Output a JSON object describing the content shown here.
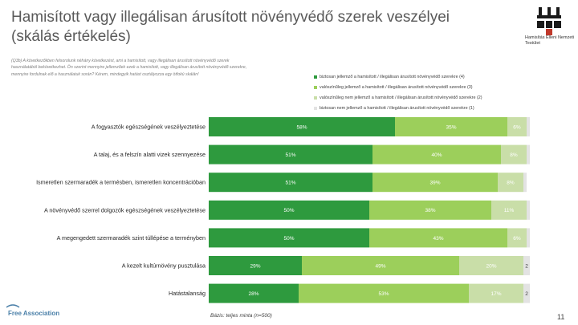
{
  "title": "Hamisított vagy illegálisan árusított növényvédő szerek veszélyei (skálás értékelés)",
  "logo_text": "Hamisítás Elleni Nemzeti Testület",
  "question": "(Q3b) A következőkben felsorolunk néhány következést, ami a hamisított, vagy illegálisan árusított növényvédő szerek használatából bekövetkezhet. Ön szerint mennyire jellemzőek ezek a hamisított, vagy illegálisan árusított növényvédő szerekre, mennyire fordulnak elő a használatuk során? Kérem, mindegyik hatást osztályozza egy ötfokú skálán!",
  "base_note": "Bázis: teljes minta (n=500)",
  "page_number": "11",
  "brand": "Free Association",
  "colors": {
    "s1": "#2e9a3e",
    "s2": "#9ccf5b",
    "s3": "#c9dea8",
    "s4": "#e3e3e3",
    "text_light": "#ffffff",
    "text_dark": "#ffffff"
  },
  "chart_data": {
    "type": "bar",
    "orientation": "horizontal-stacked",
    "categories": [
      "A fogyasztók egészségének veszélyeztetése",
      "A talaj, és a felszín alatti vizek szennyezése",
      "Ismeretlen szermaradék a termésben, ismeretlen koncentrációban",
      "A növényvédő szerrel dolgozók egészségének veszélyeztetése",
      "A megengedett szermaradék szint túllépése a terményben",
      "A kezelt kultúrnövény pusztulása",
      "Hatástalanság"
    ],
    "series": [
      {
        "name": "biztosan jellemző a hamisított / illegálisan árusított növényvédő szerekre (4)",
        "values": [
          58,
          51,
          51,
          50,
          50,
          29,
          28
        ],
        "labels": [
          "58%",
          "51%",
          "51%",
          "50%",
          "50%",
          "29%",
          "28%"
        ]
      },
      {
        "name": "valószínűleg jellemző a hamisított / illegálisan árusított növényvédő szerekre (3)",
        "values": [
          35,
          40,
          39,
          38,
          43,
          49,
          53
        ],
        "labels": [
          "35%",
          "40%",
          "39%",
          "38%",
          "43%",
          "49%",
          "53%"
        ]
      },
      {
        "name": "valószínűleg nem jellemző a hamisított / illegálisan árusított növényvédő szerekre (2)",
        "values": [
          6,
          8,
          8,
          11,
          6,
          20,
          17
        ],
        "labels": [
          "6%",
          "8%",
          "8%",
          "11%",
          "6%",
          "20%",
          "17%"
        ]
      },
      {
        "name": "biztosan nem jellemző a hamisított / illegálisan árusított növényvédő szerekre (1)",
        "values": [
          1,
          1,
          1,
          1,
          1,
          2,
          2
        ],
        "labels": [
          "",
          "",
          "",
          "",
          "",
          "2",
          "2"
        ]
      }
    ],
    "xlim": [
      0,
      100
    ]
  }
}
